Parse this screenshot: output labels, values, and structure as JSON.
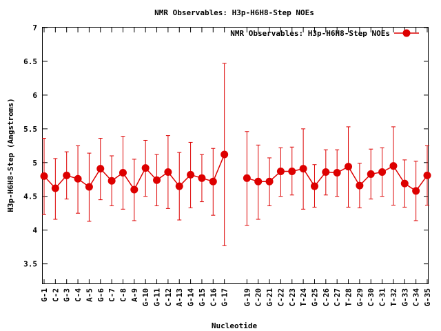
{
  "chart_data": {
    "type": "line",
    "title": "NMR Observables: H3p-H6H8-Step NOEs",
    "xlabel": "Nucleotide",
    "ylabel": "H3p-H6H8-Step (Angstroms)",
    "ylim": [
      3.2,
      7.0
    ],
    "yticks": [
      3.5,
      4,
      4.5,
      5,
      5.5,
      6,
      6.5,
      7
    ],
    "ytick_labels": [
      "3.5",
      "4",
      "4.5",
      "5",
      "5.5",
      "6",
      "6.5",
      "7"
    ],
    "legend_position": "top-right",
    "grid": false,
    "color": "#dd0000",
    "categories": [
      "G-1",
      "C-2",
      "G-3",
      "C-4",
      "A-5",
      "G-6",
      "C-7",
      "C-8",
      "A-9",
      "G-10",
      "G-11",
      "C-12",
      "A-13",
      "G-14",
      "G-15",
      "C-16",
      "G-17",
      "G-19",
      "C-20",
      "G-21",
      "C-22",
      "C-23",
      "T-24",
      "G-25",
      "C-26",
      "C-27",
      "T-28",
      "G-29",
      "C-30",
      "C-31",
      "T-32",
      "G-33",
      "C-34",
      "G-35"
    ],
    "series": [
      {
        "name": "NMR Observables: H3p-H6H8-Step NOEs",
        "values": [
          4.8,
          4.62,
          4.81,
          4.76,
          4.64,
          4.91,
          4.73,
          4.85,
          4.6,
          4.92,
          4.74,
          4.86,
          4.65,
          4.82,
          4.77,
          4.72,
          5.12,
          4.77,
          4.72,
          4.72,
          4.87,
          4.87,
          4.91,
          4.65,
          4.86,
          4.85,
          4.94,
          4.66,
          4.83,
          4.86,
          4.95,
          4.69,
          4.58,
          4.81
        ],
        "err_low": [
          4.23,
          4.16,
          4.46,
          4.25,
          4.13,
          4.45,
          4.36,
          4.31,
          4.14,
          4.5,
          4.36,
          4.32,
          4.15,
          4.33,
          4.42,
          4.22,
          3.77,
          4.07,
          4.16,
          4.36,
          4.5,
          4.52,
          4.31,
          4.34,
          4.52,
          4.5,
          4.34,
          4.33,
          4.46,
          4.5,
          4.37,
          4.34,
          4.14,
          4.37
        ],
        "err_high": [
          5.36,
          5.06,
          5.16,
          5.25,
          5.14,
          5.36,
          5.1,
          5.39,
          5.05,
          5.33,
          5.12,
          5.4,
          5.15,
          5.3,
          5.12,
          5.21,
          6.47,
          5.46,
          5.26,
          5.07,
          5.22,
          5.23,
          5.5,
          4.97,
          5.19,
          5.19,
          5.53,
          4.99,
          5.2,
          5.22,
          5.53,
          5.04,
          5.02,
          5.25
        ]
      }
    ]
  }
}
